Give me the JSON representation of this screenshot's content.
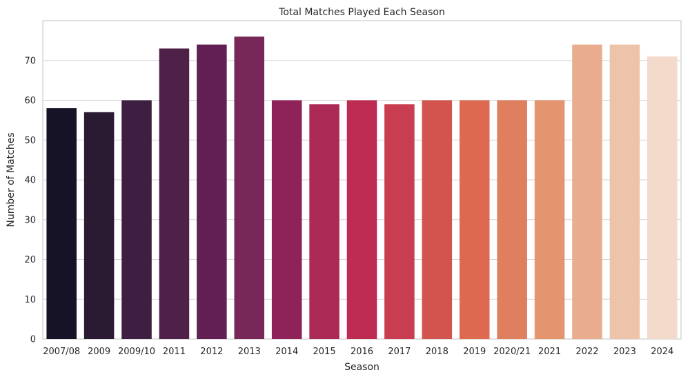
{
  "chart_data": {
    "type": "bar",
    "title": "Total Matches Played Each Season",
    "xlabel": "Season",
    "ylabel": "Number of Matches",
    "categories": [
      "2007/08",
      "2009",
      "2009/10",
      "2011",
      "2012",
      "2013",
      "2014",
      "2015",
      "2016",
      "2017",
      "2018",
      "2019",
      "2020/21",
      "2021",
      "2022",
      "2023",
      "2024"
    ],
    "values": [
      58,
      57,
      60,
      73,
      74,
      76,
      60,
      59,
      60,
      59,
      60,
      60,
      60,
      60,
      74,
      74,
      71
    ],
    "colors": [
      "#161327",
      "#2a1b33",
      "#3c1f41",
      "#4f2048",
      "#611f53",
      "#782759",
      "#8d2358",
      "#ac2b56",
      "#be2c53",
      "#c93d50",
      "#d3534f",
      "#dd6a50",
      "#e07f5f",
      "#e59470",
      "#eaac8f",
      "#edc3a9",
      "#f3dacb"
    ],
    "ylim": [
      0,
      80
    ],
    "yticks": [
      0,
      10,
      20,
      30,
      40,
      50,
      60,
      70
    ],
    "grid": true,
    "grid_axis": "y",
    "legend": "none"
  }
}
